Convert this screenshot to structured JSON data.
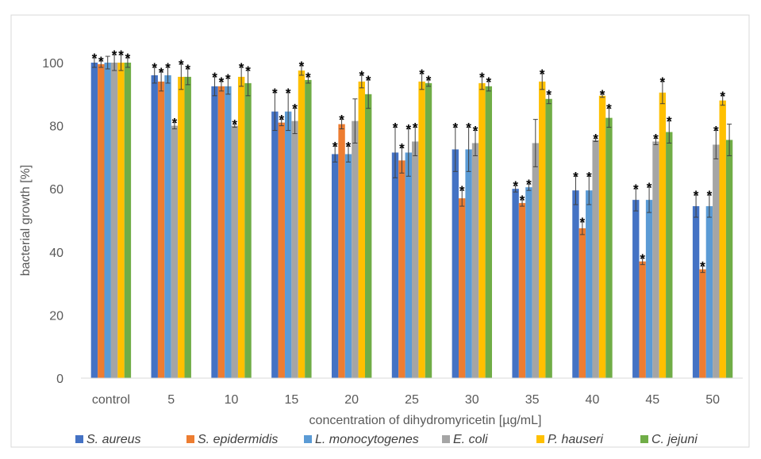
{
  "chart_data": {
    "type": "bar",
    "title": "",
    "xlabel": "concentration of dihydromyricetin [µg/mL]",
    "ylabel": "bacterial growth [%]",
    "ylim": [
      0,
      100
    ],
    "yticks": [
      0,
      20,
      40,
      60,
      80,
      100
    ],
    "grid": false,
    "legend_position": "bottom",
    "categories": [
      "control",
      "5",
      "10",
      "15",
      "20",
      "25",
      "30",
      "35",
      "40",
      "45",
      "50"
    ],
    "significance_marker": "*",
    "series": [
      {
        "name": "S. aureus",
        "color": "#4472C4",
        "values": [
          100,
          96,
          92.5,
          84.5,
          71,
          71.5,
          72.5,
          60,
          59.5,
          56.5,
          54.5
        ],
        "errors": [
          1.5,
          2.5,
          3,
          6,
          2.5,
          8,
          7,
          1,
          4.5,
          3.5,
          3.5
        ],
        "significant": [
          true,
          true,
          true,
          true,
          true,
          true,
          true,
          true,
          true,
          true,
          true
        ]
      },
      {
        "name": "S. epidermidis",
        "color": "#ED7D31",
        "values": [
          99.5,
          94,
          92.5,
          81,
          80.5,
          69,
          57,
          55.5,
          47.5,
          37,
          34.5
        ],
        "errors": [
          1,
          3,
          1.5,
          1,
          1.5,
          4,
          2.5,
          1,
          2,
          1,
          1
        ],
        "significant": [
          true,
          true,
          true,
          true,
          true,
          true,
          true,
          true,
          true,
          true,
          true
        ]
      },
      {
        "name": "L. monocytogenes",
        "color": "#5B9BD5",
        "values": [
          100,
          96,
          92.5,
          84.5,
          71,
          71.5,
          72.5,
          60.5,
          59.5,
          56.5,
          54.5
        ],
        "errors": [
          2,
          2.5,
          2.5,
          6,
          2.5,
          7.5,
          7,
          1,
          4.5,
          4,
          3.5
        ],
        "significant": [
          false,
          true,
          true,
          true,
          true,
          true,
          true,
          true,
          true,
          true,
          true
        ]
      },
      {
        "name": "E. coli",
        "color": "#A5A5A5",
        "values": [
          100,
          80,
          80,
          81.5,
          81.5,
          75,
          74.5,
          74.5,
          75.5,
          75,
          74
        ],
        "errors": [
          2.5,
          1,
          0.5,
          4,
          7,
          4.5,
          4,
          7.5,
          0.5,
          1,
          4.5
        ],
        "significant": [
          true,
          true,
          true,
          true,
          false,
          true,
          true,
          false,
          true,
          true,
          true
        ]
      },
      {
        "name": "P. hauseri",
        "color": "#FFC000",
        "values": [
          100,
          95.5,
          95.5,
          97.5,
          94,
          94,
          93.5,
          94,
          89.5,
          90.5,
          88
        ],
        "errors": [
          2.5,
          4,
          3,
          1.5,
          2,
          2.5,
          2,
          2.5,
          0.5,
          3.5,
          1.5
        ],
        "significant": [
          true,
          true,
          true,
          true,
          true,
          true,
          true,
          true,
          true,
          true,
          true
        ]
      },
      {
        "name": "C. jejuni",
        "color": "#70AD47",
        "values": [
          100,
          95.5,
          93.5,
          94.5,
          90,
          93.5,
          92.5,
          88.5,
          82.5,
          78,
          75.5
        ],
        "errors": [
          1.5,
          2.5,
          4,
          1,
          4.5,
          1,
          1.5,
          1.5,
          3,
          3.5,
          5
        ],
        "significant": [
          true,
          true,
          true,
          true,
          true,
          true,
          true,
          true,
          true,
          true,
          false
        ]
      }
    ]
  }
}
